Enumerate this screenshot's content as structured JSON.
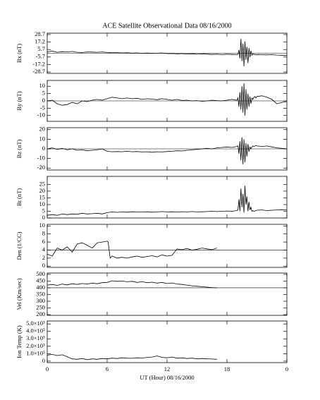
{
  "chart_data": [
    {
      "type": "line",
      "title": "ACE Satellite Observational Data   08/16/2000",
      "ylabel": "Bx (nT)",
      "xlim": [
        0,
        24
      ],
      "xticks": [
        0,
        6,
        12,
        18,
        {
          "value": 24,
          "label": "0"
        }
      ],
      "ylim": [
        -30.8,
        30.8
      ],
      "yticks": [
        28.7,
        17.2,
        5.7,
        -5.7,
        -17.2,
        -28.7
      ],
      "hline": 0,
      "x": [
        0,
        0.5,
        1,
        1.5,
        2,
        2.5,
        3,
        3.5,
        4,
        4.5,
        5,
        5.5,
        6,
        6.5,
        7,
        7.5,
        8,
        8.5,
        9,
        9.5,
        10,
        10.5,
        11,
        11.5,
        12,
        12.5,
        13,
        13.5,
        14,
        14.5,
        15,
        15.5,
        16,
        16.5,
        17,
        17.5,
        18,
        18.5,
        19,
        19.1,
        19.2,
        19.3,
        19.4,
        19.5,
        19.6,
        19.7,
        19.8,
        19.9,
        20,
        20.1,
        20.2,
        20.3,
        20.4,
        20.5,
        20.6,
        20.7,
        20.8,
        20.9,
        21,
        21.5,
        22,
        22.5,
        23,
        23.5,
        24
      ],
      "values": [
        2,
        3.5,
        1.5,
        2.5,
        2,
        2.8,
        1.5,
        1.2,
        2,
        1.8,
        1.5,
        2,
        1.2,
        0.8,
        1,
        0.5,
        0.8,
        0.2,
        0.5,
        0,
        0.3,
        -0.2,
        0,
        0.5,
        -0.5,
        -0.3,
        -1,
        -0.5,
        -1.2,
        -0.8,
        -1.5,
        -1,
        -1.3,
        -1.8,
        -1.5,
        -2,
        -1.5,
        -1.8,
        -2,
        -1.5,
        5,
        -8,
        22,
        -12,
        15,
        -20,
        18,
        -10,
        10,
        -15,
        8,
        -6,
        4,
        -3,
        -1,
        -2,
        -1.5,
        -2.5,
        -2,
        -2.3,
        -2.5,
        -2.2,
        -2.8,
        -3,
        -3.2
      ],
      "color": "#000000"
    },
    {
      "type": "line",
      "ylabel": "By (nT)",
      "xlim": [
        0,
        24
      ],
      "xticks": [
        0,
        6,
        12,
        18,
        {
          "value": 24,
          "label": "0"
        }
      ],
      "ylim": [
        -14,
        14
      ],
      "yticks": [
        10,
        5,
        0,
        -5,
        -10
      ],
      "hline": 0,
      "x": [
        0,
        0.5,
        1,
        1.5,
        2,
        2.5,
        3,
        3.5,
        4,
        4.5,
        5,
        5.5,
        6,
        6.5,
        7,
        7.5,
        8,
        8.5,
        9,
        9.5,
        10,
        10.5,
        11,
        11.5,
        12,
        12.5,
        13,
        13.5,
        14,
        14.5,
        15,
        15.5,
        16,
        16.5,
        17,
        17.5,
        18,
        18.5,
        19,
        19.1,
        19.2,
        19.3,
        19.4,
        19.5,
        19.6,
        19.7,
        19.8,
        19.9,
        20,
        20.1,
        20.2,
        20.3,
        20.4,
        20.5,
        20.6,
        20.7,
        20.8,
        20.9,
        21,
        21.5,
        22,
        22.5,
        23,
        23.5,
        24
      ],
      "values": [
        0,
        0.5,
        -2,
        -3,
        -2.5,
        -1,
        -2,
        0,
        -0.5,
        0.5,
        1,
        0.5,
        1.5,
        2.5,
        2,
        1.5,
        2,
        1.5,
        1.8,
        1,
        1.5,
        1.2,
        0.8,
        1.5,
        1,
        0.5,
        1,
        0.3,
        0.5,
        0,
        0.2,
        -0.3,
        0,
        0.5,
        0.2,
        0,
        0.5,
        1,
        0.5,
        2,
        -4,
        6,
        -6,
        10,
        -8,
        12,
        -10,
        8,
        -6,
        5,
        -4,
        3,
        -2,
        2,
        1,
        2.5,
        3,
        2,
        3,
        3.5,
        2.5,
        1,
        -2,
        -1,
        -0.5
      ],
      "color": "#000000"
    },
    {
      "type": "line",
      "ylabel": "Bz (nT)",
      "xlim": [
        0,
        24
      ],
      "xticks": [
        0,
        6,
        12,
        18,
        {
          "value": 24,
          "label": "0"
        }
      ],
      "ylim": [
        -22,
        22
      ],
      "yticks": [
        20,
        10,
        0,
        -10,
        -20
      ],
      "hline": 0,
      "x": [
        0,
        0.5,
        1,
        1.5,
        2,
        2.5,
        3,
        3.5,
        4,
        4.5,
        5,
        5.5,
        6,
        6.5,
        7,
        7.5,
        8,
        8.5,
        9,
        9.5,
        10,
        10.5,
        11,
        11.5,
        12,
        12.5,
        13,
        13.5,
        14,
        14.5,
        15,
        15.5,
        16,
        16.5,
        17,
        17.5,
        18,
        18.5,
        19,
        19.1,
        19.2,
        19.3,
        19.4,
        19.5,
        19.6,
        19.7,
        19.8,
        19.9,
        20,
        20.1,
        20.2,
        20.3,
        20.4,
        20.5,
        20.6,
        20.7,
        20.8,
        20.9,
        21,
        21.5,
        22,
        22.5,
        23,
        23.5,
        24
      ],
      "values": [
        0,
        1,
        -0.5,
        0.5,
        -1,
        0,
        -1.5,
        -1,
        -2,
        -1.5,
        -1,
        0,
        -2.5,
        -3,
        -2.8,
        -3,
        -2.5,
        -3,
        -2.8,
        -3.2,
        -3,
        -3.5,
        -3,
        -3.2,
        -2.8,
        -2.5,
        -2,
        -2.2,
        -1.5,
        -1,
        -0.5,
        0,
        0.5,
        0,
        1,
        1.5,
        2,
        1.5,
        2.5,
        3,
        -5,
        8,
        -12,
        12,
        -16,
        10,
        -14,
        6,
        -8,
        5,
        -3,
        2,
        0,
        2,
        3,
        2.5,
        3,
        3.5,
        3,
        2.5,
        3,
        2,
        1,
        0.5,
        0
      ],
      "color": "#000000"
    },
    {
      "type": "line",
      "ylabel": "Bt (nT)",
      "xlim": [
        0,
        24
      ],
      "xticks": [
        0,
        6,
        12,
        18,
        {
          "value": 24,
          "label": "0"
        }
      ],
      "ylim": [
        0,
        31
      ],
      "yticks": [
        25,
        20,
        15,
        10,
        5,
        0
      ],
      "x": [
        0,
        0.5,
        1,
        1.5,
        2,
        2.5,
        3,
        3.5,
        4,
        4.5,
        5,
        5.5,
        6,
        6.5,
        7,
        7.5,
        8,
        8.5,
        9,
        9.5,
        10,
        10.5,
        11,
        11.5,
        12,
        12.5,
        13,
        13.5,
        14,
        14.5,
        15,
        15.5,
        16,
        16.5,
        17,
        17.5,
        18,
        18.5,
        19,
        19.1,
        19.2,
        19.3,
        19.4,
        19.5,
        19.6,
        19.7,
        19.8,
        19.9,
        20,
        20.1,
        20.2,
        20.3,
        20.4,
        20.5,
        20.6,
        20.7,
        20.8,
        20.9,
        21,
        21.5,
        22,
        22.5,
        23,
        23.5,
        24
      ],
      "values": [
        2,
        2.5,
        2,
        3,
        2.5,
        3,
        2.8,
        3.5,
        3,
        3.2,
        3.5,
        3,
        4,
        4.5,
        4.2,
        4.5,
        4.3,
        4.6,
        4.5,
        4.4,
        4.6,
        4.3,
        4.5,
        4.8,
        4.5,
        4.6,
        4.4,
        4.7,
        4.5,
        4.8,
        4.5,
        4.6,
        4.8,
        5,
        4.8,
        5,
        5.2,
        5,
        5.5,
        6,
        14,
        5,
        22,
        8,
        18,
        4,
        24,
        10,
        16,
        5,
        12,
        6,
        8,
        5,
        5.5,
        5,
        5.2,
        5.5,
        5.8,
        6,
        5.5,
        5.8,
        6,
        6.2,
        6
      ],
      "color": "#000000"
    },
    {
      "type": "line",
      "ylabel": "Den (1/CC)",
      "xlim": [
        0,
        24
      ],
      "xticks": [
        0,
        6,
        12,
        18,
        {
          "value": 24,
          "label": "0"
        }
      ],
      "ylim": [
        -0.3,
        10.4
      ],
      "yticks": [
        10,
        8,
        6,
        4,
        2,
        0
      ],
      "hline": 4,
      "x": [
        0,
        0.5,
        1,
        1.5,
        2,
        2.5,
        3,
        3.5,
        4,
        4.5,
        5,
        5.5,
        6,
        6.1,
        6.3,
        6.5,
        7,
        7.5,
        8,
        8.5,
        9,
        9.5,
        10,
        10.5,
        11,
        11.5,
        12,
        12.5,
        13,
        13.5,
        14,
        14.5,
        15,
        15.5,
        16,
        16.5,
        17
      ],
      "values": [
        3,
        2.5,
        4.5,
        4,
        4.8,
        3.5,
        5.5,
        5.8,
        5.2,
        4.5,
        5.8,
        6,
        6.2,
        6,
        2,
        2.5,
        2,
        2.2,
        2,
        2.3,
        2.5,
        2.2,
        2.4,
        2.6,
        2.3,
        2.8,
        2.5,
        2.7,
        4.3,
        4.1,
        4.4,
        4,
        4.2,
        4.5,
        4.3,
        4.1,
        4.5
      ],
      "color": "#000000"
    },
    {
      "type": "line",
      "ylabel": "Vel (Km/sec)",
      "xlim": [
        0,
        24
      ],
      "xticks": [
        0,
        6,
        12,
        18,
        {
          "value": 24,
          "label": "0"
        }
      ],
      "ylim": [
        195,
        510
      ],
      "yticks": [
        500,
        450,
        400,
        350,
        300,
        250,
        200
      ],
      "hline": 400,
      "x": [
        0,
        0.5,
        1,
        1.5,
        2,
        2.5,
        3,
        3.5,
        4,
        4.5,
        5,
        5.5,
        6,
        6.5,
        7,
        7.5,
        8,
        8.5,
        9,
        9.5,
        10,
        10.5,
        11,
        11.5,
        12,
        12.5,
        13,
        13.5,
        14,
        14.5,
        15,
        15.5,
        16,
        16.5,
        17
      ],
      "values": [
        420,
        425,
        418,
        428,
        422,
        430,
        425,
        432,
        428,
        435,
        430,
        438,
        440,
        452,
        448,
        450,
        445,
        448,
        440,
        445,
        438,
        442,
        435,
        440,
        432,
        436,
        428,
        425,
        420,
        415,
        412,
        408,
        405,
        402,
        400
      ],
      "color": "#000000"
    },
    {
      "type": "line",
      "ylabel": "Ion Temp (K)",
      "xlabel": "UT (Hour)   08/16/2000",
      "xlim": [
        0,
        24
      ],
      "xticks": [
        0,
        6,
        12,
        18,
        {
          "value": 24,
          "label": "0"
        }
      ],
      "ylim": [
        -20000,
        540000
      ],
      "yticks": [
        {
          "value": 500000,
          "label": "5.0×10⁵"
        },
        {
          "value": 400000,
          "label": "4.0×10⁵"
        },
        {
          "value": 300000,
          "label": "3.0×10⁵"
        },
        {
          "value": 200000,
          "label": "2.0×10⁵"
        },
        {
          "value": 100000,
          "label": "1.0×10⁵"
        },
        0
      ],
      "x": [
        0,
        0.5,
        1,
        1.5,
        2,
        2.5,
        3,
        3.5,
        4,
        4.5,
        5,
        5.5,
        6,
        6.5,
        7,
        7.5,
        8,
        8.5,
        9,
        9.5,
        10,
        10.5,
        11,
        11.5,
        12,
        12.5,
        13,
        13.5,
        14,
        14.5,
        15,
        15.5,
        16,
        16.5,
        17
      ],
      "values": [
        80000,
        90000,
        75000,
        85000,
        60000,
        30000,
        25000,
        35000,
        20000,
        30000,
        25000,
        35000,
        30000,
        40000,
        35000,
        45000,
        40000,
        38000,
        45000,
        42000,
        50000,
        55000,
        70000,
        50000,
        45000,
        55000,
        40000,
        45000,
        35000,
        40000,
        30000,
        35000,
        30000,
        28000,
        25000
      ],
      "color": "#000000"
    }
  ]
}
